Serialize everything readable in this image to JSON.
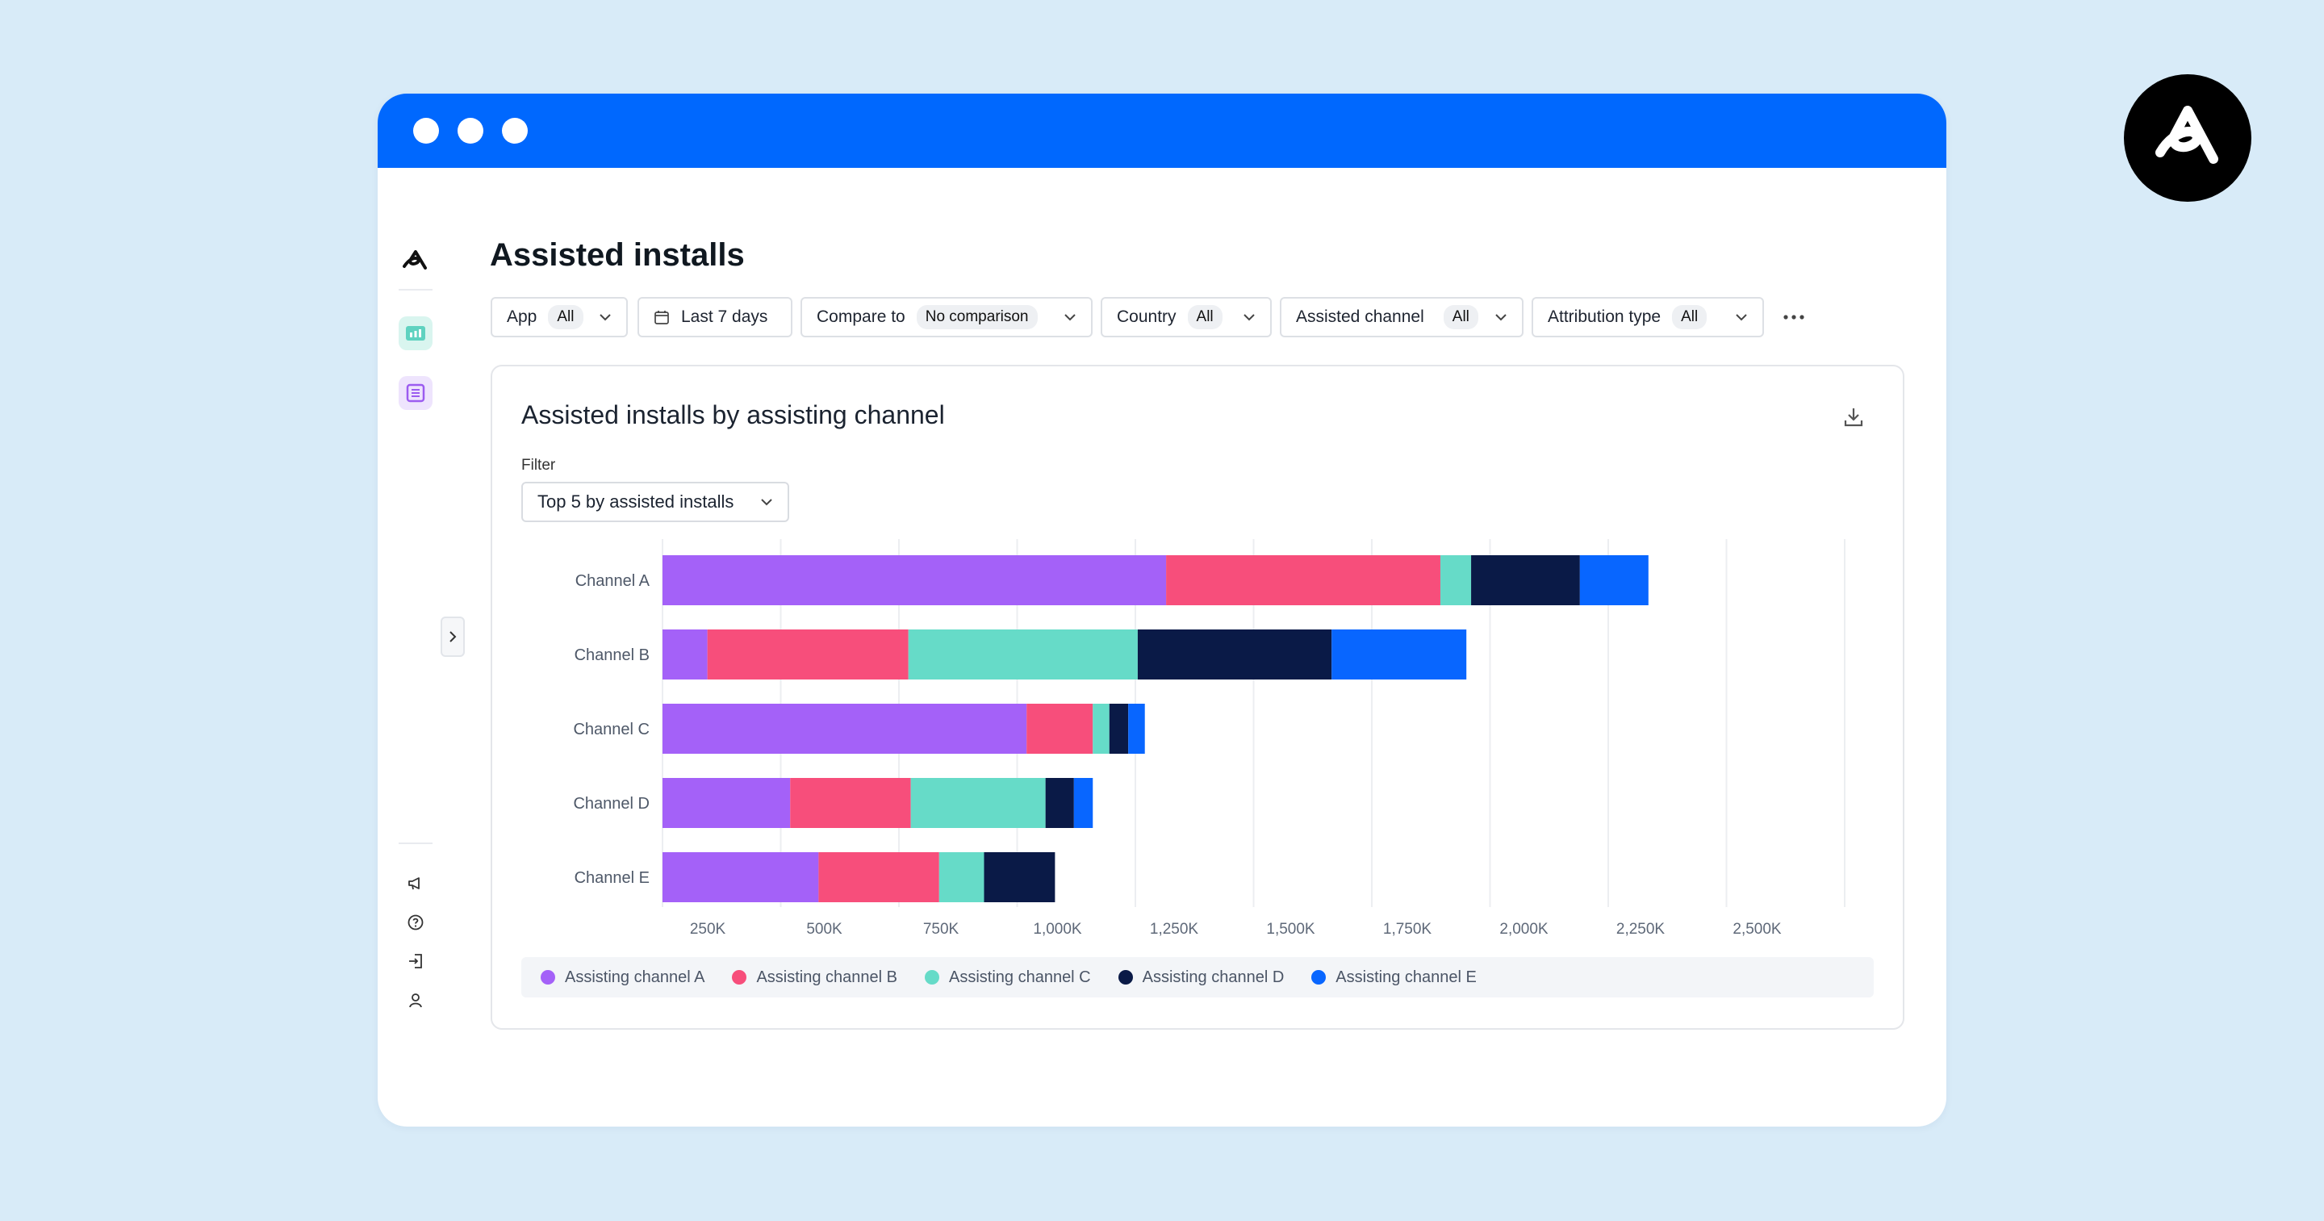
{
  "page": {
    "title": "Assisted installs"
  },
  "filters": {
    "app": {
      "label": "App",
      "value": "All"
    },
    "date": {
      "label": "Last 7 days"
    },
    "compare": {
      "label": "Compare to",
      "value": "No comparison"
    },
    "country": {
      "label": "Country",
      "value": "All"
    },
    "assisted_channel": {
      "label": "Assisted channel",
      "value": "All"
    },
    "attribution_type": {
      "label": "Attribution type",
      "value": "All"
    }
  },
  "card": {
    "title": "Assisted installs by assisting channel",
    "filter_label": "Filter",
    "filter_value": "Top 5 by assisted installs"
  },
  "colors": {
    "titlebar": "#0068fe",
    "series": [
      "#a461f8",
      "#f74e7b",
      "#66dbc8",
      "#0a1a47",
      "#0866ff"
    ]
  },
  "chart_data": {
    "type": "bar",
    "orientation": "horizontal",
    "stacked": true,
    "categories": [
      "Channel A",
      "Channel B",
      "Channel C",
      "Channel D",
      "Channel E"
    ],
    "x_ticks": [
      "250K",
      "500K",
      "750K",
      "1,000K",
      "1,250K",
      "1,500K",
      "1,750K",
      "2,000K",
      "2,250K",
      "2,500K"
    ],
    "xlim": [
      0,
      2500000
    ],
    "grid": true,
    "legend_position": "bottom",
    "series": [
      {
        "name": "Assisting channel A",
        "color": "#a461f8",
        "values": [
          1065000,
          95000,
          770000,
          270000,
          330000
        ]
      },
      {
        "name": "Assisting channel B",
        "color": "#f74e7b",
        "values": [
          580000,
          425000,
          140000,
          255000,
          255000
        ]
      },
      {
        "name": "Assisting channel C",
        "color": "#66dbc8",
        "values": [
          65000,
          485000,
          35000,
          285000,
          95000
        ]
      },
      {
        "name": "Assisting channel D",
        "color": "#0a1a47",
        "values": [
          230000,
          410000,
          40000,
          60000,
          150000
        ]
      },
      {
        "name": "Assisting channel E",
        "color": "#0866ff",
        "values": [
          145000,
          285000,
          35000,
          40000,
          0
        ]
      }
    ]
  }
}
